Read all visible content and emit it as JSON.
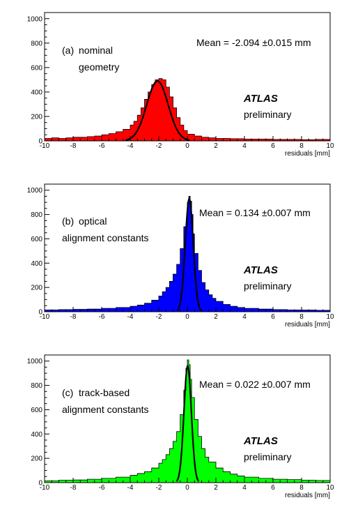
{
  "chart_data": [
    {
      "type": "histogram",
      "panel_label": "(a)",
      "caption_lines": [
        "nominal",
        "geometry"
      ],
      "mean_text": "Mean = -2.094 ±0.015 mm",
      "atlas_label": "ATLAS",
      "atlas_sub": "preliminary",
      "xlabel": "residuals  [mm]",
      "xlim": [
        -10,
        10
      ],
      "ylim": [
        0,
        1050
      ],
      "xticks": [
        "-10",
        "-8",
        "-6",
        "-4",
        "-2",
        "0",
        "2",
        "4",
        "6",
        "8",
        "10"
      ],
      "yticks": [
        "0",
        "200",
        "400",
        "600",
        "800",
        "1000"
      ],
      "fill_color": "#ff0000",
      "series": {
        "x": [
          -10,
          -9.5,
          -9,
          -8.5,
          -8,
          -7.5,
          -7,
          -6.5,
          -6,
          -5.5,
          -5,
          -4.5,
          -4,
          -3.75,
          -3.5,
          -3.25,
          -3,
          -2.75,
          -2.5,
          -2.25,
          -2,
          -1.75,
          -1.5,
          -1.25,
          -1,
          -0.75,
          -0.5,
          -0.25,
          0,
          0.5,
          1,
          1.5,
          2,
          3,
          4,
          5,
          6,
          7,
          8,
          9,
          10
        ],
        "y": [
          20,
          25,
          20,
          25,
          30,
          30,
          35,
          40,
          50,
          60,
          75,
          95,
          130,
          160,
          210,
          270,
          340,
          400,
          460,
          500,
          510,
          500,
          440,
          360,
          270,
          190,
          130,
          85,
          55,
          40,
          30,
          25,
          20,
          18,
          15,
          15,
          12,
          12,
          10,
          12,
          10
        ]
      },
      "fit": {
        "peak": 490,
        "mean": -2.094,
        "sigma": 0.75
      }
    },
    {
      "type": "histogram",
      "panel_label": "(b)",
      "caption_lines": [
        "optical",
        "alignment constants"
      ],
      "mean_text": "Mean = 0.134 ±0.007 mm",
      "atlas_label": "ATLAS",
      "atlas_sub": "preliminary",
      "xlabel": "residuals  [mm]",
      "xlim": [
        -10,
        10
      ],
      "ylim": [
        0,
        1050
      ],
      "xticks": [
        "-10",
        "-8",
        "-6",
        "-4",
        "-2",
        "0",
        "2",
        "4",
        "6",
        "8",
        "10"
      ],
      "yticks": [
        "0",
        "200",
        "400",
        "600",
        "800",
        "1000"
      ],
      "fill_color": "#0000ff",
      "series": {
        "x": [
          -10,
          -9,
          -8,
          -7,
          -6,
          -5,
          -4,
          -3.5,
          -3,
          -2.5,
          -2,
          -1.75,
          -1.5,
          -1.25,
          -1,
          -0.75,
          -0.5,
          -0.25,
          0,
          0.1,
          0.2,
          0.3,
          0.4,
          0.5,
          0.75,
          1,
          1.25,
          1.5,
          1.75,
          2,
          2.5,
          3,
          3.5,
          4,
          5,
          6,
          7,
          8,
          9,
          10
        ],
        "y": [
          15,
          18,
          20,
          22,
          28,
          35,
          45,
          55,
          70,
          95,
          130,
          165,
          200,
          250,
          310,
          390,
          520,
          700,
          900,
          950,
          910,
          800,
          640,
          480,
          340,
          240,
          180,
          140,
          110,
          85,
          60,
          45,
          35,
          28,
          22,
          18,
          15,
          14,
          12,
          12
        ]
      },
      "fit": {
        "peak": 930,
        "mean": 0.134,
        "sigma": 0.28
      }
    },
    {
      "type": "histogram",
      "panel_label": "(c)",
      "caption_lines": [
        "track-based",
        "alignment constants"
      ],
      "mean_text": "Mean = 0.022 ±0.007 mm",
      "atlas_label": "ATLAS",
      "atlas_sub": "preliminary",
      "xlabel": "residuals  [mm]",
      "xlim": [
        -10,
        10
      ],
      "ylim": [
        0,
        1050
      ],
      "xticks": [
        "-10",
        "-8",
        "-6",
        "-4",
        "-2",
        "0",
        "2",
        "4",
        "6",
        "8",
        "10"
      ],
      "yticks": [
        "0",
        "200",
        "400",
        "600",
        "800",
        "1000"
      ],
      "fill_color": "#00ff00",
      "series": {
        "x": [
          -10,
          -9,
          -8,
          -7,
          -6,
          -5,
          -4,
          -3.5,
          -3,
          -2.5,
          -2,
          -1.75,
          -1.5,
          -1.25,
          -1,
          -0.75,
          -0.5,
          -0.25,
          -0.1,
          0,
          0.1,
          0.2,
          0.3,
          0.5,
          0.75,
          1,
          1.25,
          1.5,
          2,
          2.5,
          3,
          3.5,
          4,
          5,
          6,
          7,
          8,
          9,
          10
        ],
        "y": [
          15,
          20,
          22,
          28,
          35,
          45,
          60,
          75,
          90,
          120,
          160,
          190,
          230,
          280,
          340,
          420,
          560,
          760,
          940,
          1010,
          970,
          850,
          700,
          520,
          380,
          280,
          210,
          170,
          120,
          90,
          70,
          55,
          45,
          35,
          28,
          25,
          20,
          18,
          15
        ]
      },
      "fit": {
        "peak": 960,
        "mean": 0.022,
        "sigma": 0.26
      }
    }
  ]
}
